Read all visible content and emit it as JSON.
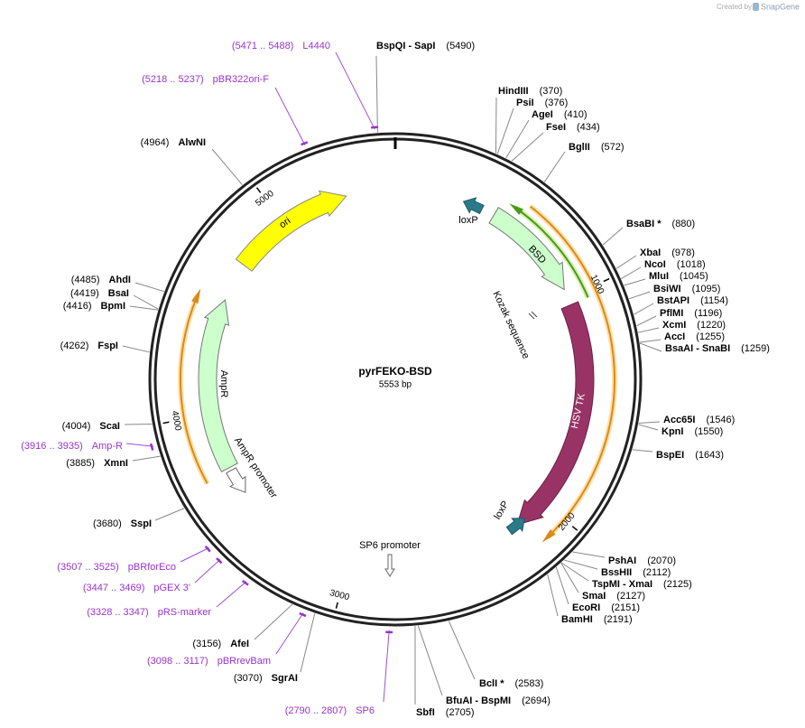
{
  "header": {
    "credit": "Created by",
    "brand": "SnapGene"
  },
  "map": {
    "name": "pyrFEKO-BSD",
    "length": "5553 bp"
  },
  "ruler": [
    1000,
    2000,
    3000,
    4000,
    5000
  ],
  "features": [
    {
      "label": "ori"
    },
    {
      "label": "BSD"
    },
    {
      "label": "Kozak sequence"
    },
    {
      "label": "HSV TK"
    },
    {
      "label": "AmpR"
    },
    {
      "label": "AmpR promoter"
    },
    {
      "label": "loxP"
    },
    {
      "label": "loxP"
    },
    {
      "label": "SP6 promoter"
    }
  ],
  "enzymes": [
    {
      "name": "BspQI - SapI",
      "position": "(5490)"
    },
    {
      "name": "HindIII",
      "position": "(370)"
    },
    {
      "name": "PsiI",
      "position": "(376)"
    },
    {
      "name": "AgeI",
      "position": "(410)"
    },
    {
      "name": "FseI",
      "position": "(434)"
    },
    {
      "name": "BglII",
      "position": "(572)"
    },
    {
      "name": "BsaBI *",
      "position": "(880)"
    },
    {
      "name": "XbaI",
      "position": "(978)"
    },
    {
      "name": "NcoI",
      "position": "(1018)"
    },
    {
      "name": "MluI",
      "position": "(1045)"
    },
    {
      "name": "BsiWI",
      "position": "(1095)"
    },
    {
      "name": "BstAPI",
      "position": "(1154)"
    },
    {
      "name": "PflMI",
      "position": "(1196)"
    },
    {
      "name": "XcmI",
      "position": "(1220)"
    },
    {
      "name": "AccI",
      "position": "(1255)"
    },
    {
      "name": "BsaAI - SnaBI",
      "position": "(1259)"
    },
    {
      "name": "Acc65I",
      "position": "(1546)"
    },
    {
      "name": "KpnI",
      "position": "(1550)"
    },
    {
      "name": "BspEI",
      "position": "(1643)"
    },
    {
      "name": "PshAI",
      "position": "(2070)"
    },
    {
      "name": "BssHII",
      "position": "(2112)"
    },
    {
      "name": "TspMI - XmaI",
      "position": "(2125)"
    },
    {
      "name": "SmaI",
      "position": "(2127)"
    },
    {
      "name": "EcoRI",
      "position": "(2151)"
    },
    {
      "name": "BamHI",
      "position": "(2191)"
    },
    {
      "name": "BclI *",
      "position": "(2583)"
    },
    {
      "name": "BfuAI - BspMI",
      "position": "(2694)"
    },
    {
      "name": "SbfI",
      "position": "(2705)"
    },
    {
      "name": "AlwNI",
      "position": "(4964)"
    },
    {
      "name": "AhdI",
      "position": "(4485)"
    },
    {
      "name": "BsaI",
      "position": "(4419)"
    },
    {
      "name": "BpmI",
      "position": "(4416)"
    },
    {
      "name": "FspI",
      "position": "(4262)"
    },
    {
      "name": "ScaI",
      "position": "(4004)"
    },
    {
      "name": "XmnI",
      "position": "(3885)"
    },
    {
      "name": "SspI",
      "position": "(3680)"
    },
    {
      "name": "AfeI",
      "position": "(3156)"
    },
    {
      "name": "SgrAI",
      "position": "(3070)"
    }
  ],
  "primers": [
    {
      "position": "(5471 .. 5488)",
      "name": "L4440"
    },
    {
      "position": "(5218 .. 5237)",
      "name": "pBR322ori-F"
    },
    {
      "position": "(3916 .. 3935)",
      "name": "Amp-R"
    },
    {
      "position": "(3507 .. 3525)",
      "name": "pBRforEco"
    },
    {
      "position": "(3447 .. 3469)",
      "name": "pGEX 3'"
    },
    {
      "position": "(3328 .. 3347)",
      "name": "pRS-marker"
    },
    {
      "position": "(3098 .. 3117)",
      "name": "pBRrevBam"
    },
    {
      "position": "(2790 .. 2807)",
      "name": "SP6"
    }
  ]
}
